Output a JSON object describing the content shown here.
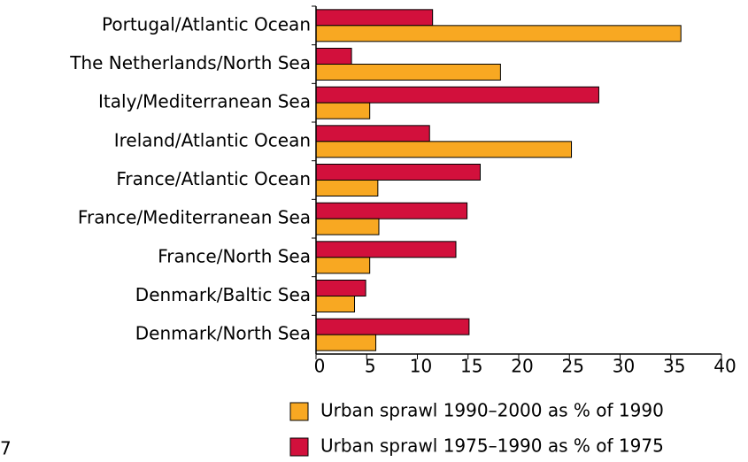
{
  "chart_data": {
    "type": "hbar",
    "categories": [
      "Portugal/Atlantic Ocean",
      "The Netherlands/North Sea",
      "Italy/Mediterranean Sea",
      "Ireland/Atlantic Ocean",
      "France/Atlantic Ocean",
      "France/Mediterranean Sea",
      "France/North Sea",
      "Denmark/Baltic Sea",
      "Denmark/North Sea"
    ],
    "series": [
      {
        "name": "Urban sprawl 1990–2000 as % of 1990",
        "color": "#f8a822",
        "values": [
          36,
          18.2,
          5.3,
          25.2,
          6.1,
          6.2,
          5.3,
          3.8,
          5.9
        ]
      },
      {
        "name": "Urban sprawl 1975–1990 as % of 1975",
        "color": "#d2103c",
        "values": [
          11.5,
          3.5,
          27.9,
          11.2,
          16.2,
          14.9,
          13.8,
          4.9,
          15.1
        ]
      }
    ],
    "xlim": [
      0,
      40
    ],
    "xticks": [
      0,
      5,
      10,
      15,
      20,
      25,
      30,
      35,
      40
    ],
    "legend": "bottom",
    "note": "7"
  }
}
